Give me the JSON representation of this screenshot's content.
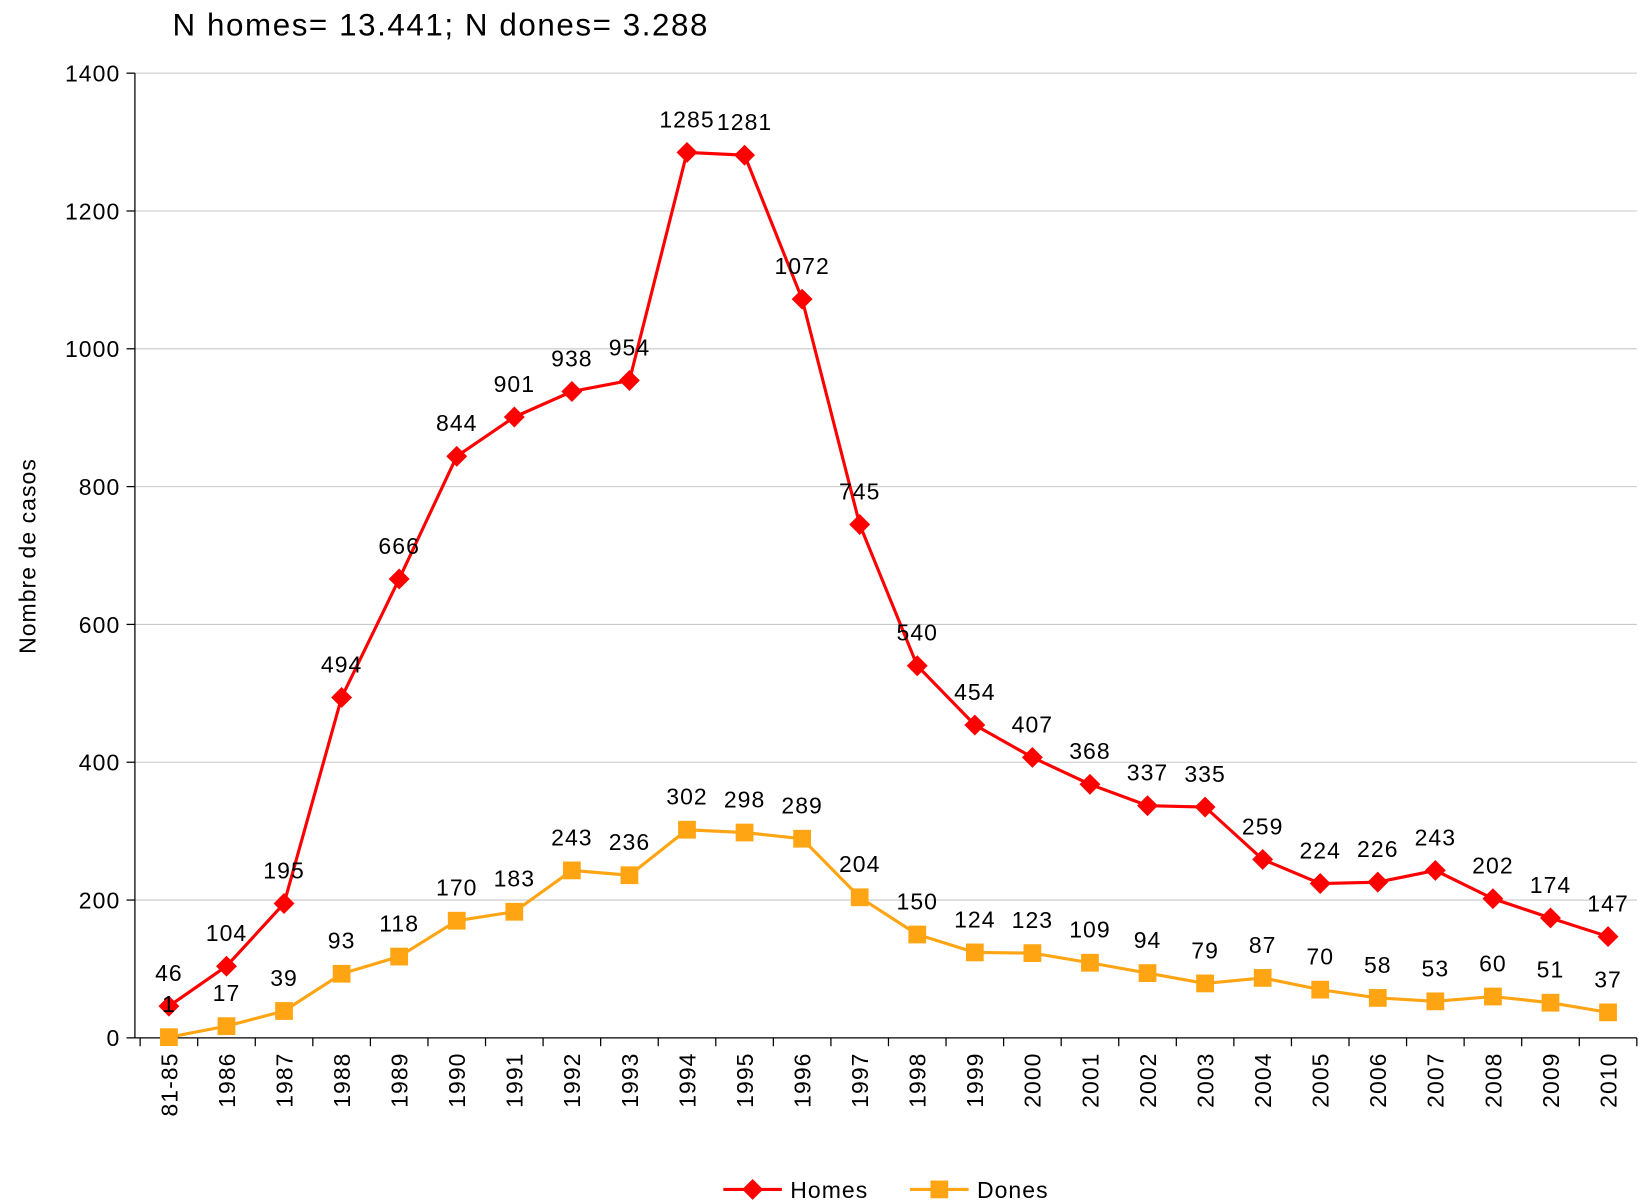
{
  "chart_data": {
    "type": "line",
    "title": "N homes= 13.441; N dones= 3.288",
    "y_label": "Nombre de casos",
    "categories": [
      "81-85",
      "1986",
      "1987",
      "1988",
      "1989",
      "1990",
      "1991",
      "1992",
      "1993",
      "1994",
      "1995",
      "1996",
      "1997",
      "1998",
      "1999",
      "2000",
      "2001",
      "2002",
      "2003",
      "2004",
      "2005",
      "2006",
      "2007",
      "2008",
      "2009",
      "2010"
    ],
    "series": [
      {
        "name": "Homes",
        "color": "#ff0000",
        "marker": "diamond",
        "values": [
          46,
          104,
          195,
          494,
          666,
          844,
          901,
          938,
          954,
          1285,
          1281,
          1072,
          745,
          540,
          454,
          407,
          368,
          337,
          335,
          259,
          224,
          226,
          243,
          202,
          174,
          147
        ]
      },
      {
        "name": "Dones",
        "color": "#ffa514",
        "marker": "square",
        "values": [
          1,
          17,
          39,
          93,
          118,
          170,
          183,
          243,
          236,
          302,
          298,
          289,
          204,
          150,
          124,
          123,
          109,
          94,
          79,
          87,
          70,
          58,
          53,
          60,
          51,
          37
        ]
      }
    ],
    "ylim": [
      0,
      1400
    ],
    "yticks": [
      0,
      200,
      400,
      600,
      800,
      1000,
      1200,
      1400
    ],
    "grid": true,
    "legend": "bottom"
  }
}
